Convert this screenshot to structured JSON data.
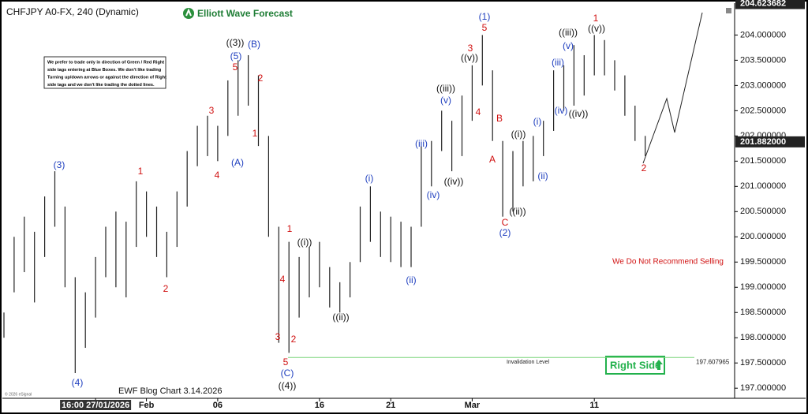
{
  "chart_data": {
    "type": "ohlc",
    "title": "CHFJPY A0-FX, 240 (Dynamic)",
    "brand": "Elliott Wave Forecast",
    "footer": "EWF Blog Chart 3.14.2026",
    "copyright": "© 2026 eSignal",
    "note": [
      "We prefer to trade only in direction of Green / Red Right",
      "side tags entering at Blue Boxes. We don't like trading",
      "Turning up/down arrows or against the direction of Right",
      "side tags and we don't like trading the dotted lines."
    ],
    "warning": "We Do Not Recommend Selling",
    "right_side": "Right Side",
    "invalidation": {
      "label": "Invalidation Level",
      "value": 197.607965,
      "color": "#7cd67c"
    },
    "last_high": 204.623682,
    "last_price": {
      "value": 201.882,
      "label": "201.882000"
    },
    "ylim": [
      196.8,
      204.6
    ],
    "yticks": [
      {
        "value": 197,
        "label": "197.000000"
      },
      {
        "value": 197.5,
        "label": "197.500000"
      },
      {
        "value": 198,
        "label": "198.000000"
      },
      {
        "value": 198.5,
        "label": "198.500000"
      },
      {
        "value": 199,
        "label": "199.000000"
      },
      {
        "value": 199.5,
        "label": "199.500000"
      },
      {
        "value": 200,
        "label": "200.000000"
      },
      {
        "value": 200.5,
        "label": "200.500000"
      },
      {
        "value": 201,
        "label": "201.000000"
      },
      {
        "value": 201.5,
        "label": "201.500000"
      },
      {
        "value": 202,
        "label": "202.000000"
      },
      {
        "value": 202.5,
        "label": "202.500000"
      },
      {
        "value": 203,
        "label": "203.000000"
      },
      {
        "value": 203.5,
        "label": "203.500000"
      },
      {
        "value": 204,
        "label": "204.000000"
      }
    ],
    "categories": [
      null,
      null,
      null,
      null,
      null,
      null,
      null,
      null,
      null,
      "16:00 27/01/2026",
      null,
      null,
      null,
      null,
      "Feb",
      null,
      null,
      null,
      null,
      null,
      null,
      "06",
      null,
      null,
      null,
      null,
      null,
      null,
      null,
      null,
      null,
      "16",
      null,
      null,
      null,
      null,
      null,
      null,
      "21",
      null,
      null,
      null,
      null,
      null,
      null,
      null,
      "Mar",
      null,
      null,
      null,
      null,
      null,
      null,
      null,
      null,
      null,
      null,
      null,
      "11",
      null,
      null,
      null,
      null,
      null
    ],
    "series": [
      {
        "color": "#222222",
        "low": [
          198.0,
          198.9,
          199.3,
          198.7,
          199.6,
          200.2,
          199.0,
          197.3,
          197.8,
          198.4,
          199.2,
          199.0,
          198.8,
          199.8,
          200.0,
          199.6,
          199.2,
          199.8,
          200.6,
          201.4,
          201.6,
          201.5,
          202.0,
          202.4,
          202.6,
          201.8,
          200.0,
          197.9,
          197.7,
          198.4,
          198.8,
          199.0,
          198.6,
          198.5,
          198.8,
          199.5,
          199.9,
          199.6,
          199.5,
          199.4,
          199.4,
          200.2,
          201.0,
          201.7,
          201.3,
          201.6,
          202.3,
          203.0,
          201.9,
          200.4,
          200.5,
          201.0,
          201.1,
          201.6,
          202.1,
          202.5,
          202.6,
          202.8,
          203.2,
          203.2,
          202.9,
          202.4,
          201.9,
          201.6
        ],
        "high": [
          198.5,
          200.0,
          200.4,
          200.1,
          200.8,
          201.3,
          200.6,
          199.2,
          198.9,
          199.6,
          200.2,
          200.5,
          200.3,
          201.1,
          200.9,
          200.6,
          200.1,
          200.9,
          201.7,
          202.2,
          202.4,
          202.2,
          203.1,
          203.5,
          203.6,
          203.2,
          202.0,
          200.2,
          199.9,
          199.6,
          199.8,
          199.9,
          199.4,
          199.1,
          199.5,
          200.6,
          201.0,
          200.5,
          200.4,
          200.3,
          200.2,
          201.8,
          201.9,
          202.5,
          202.3,
          202.8,
          203.4,
          204.0,
          203.3,
          201.9,
          201.7,
          201.9,
          202.0,
          202.3,
          203.3,
          203.4,
          203.8,
          203.6,
          204.0,
          203.9,
          203.5,
          203.2,
          202.6,
          202.0
        ]
      }
    ],
    "annotations": [
      {
        "text": "(3)",
        "color": "#1f3fbf"
      },
      {
        "text": "(4)",
        "color": "#1f3fbf"
      },
      {
        "text": "1",
        "color": "#d01010"
      },
      {
        "text": "2",
        "color": "#d01010"
      },
      {
        "text": "3",
        "color": "#d01010"
      },
      {
        "text": "4",
        "color": "#d01010"
      },
      {
        "text": "5",
        "color": "#d01010"
      },
      {
        "text": "(5)",
        "color": "#1f3fbf"
      },
      {
        "text": "((3))",
        "color": "#111111"
      },
      {
        "text": "(B)",
        "color": "#1f3fbf"
      },
      {
        "text": "2",
        "color": "#d01010"
      },
      {
        "text": "1",
        "color": "#d01010"
      },
      {
        "text": "(A)",
        "color": "#1f3fbf"
      },
      {
        "text": "1",
        "color": "#d01010"
      },
      {
        "text": "((i))",
        "color": "#111111"
      },
      {
        "text": "4",
        "color": "#d01010"
      },
      {
        "text": "3",
        "color": "#d01010"
      },
      {
        "text": "2",
        "color": "#d01010"
      },
      {
        "text": "5",
        "color": "#d01010"
      },
      {
        "text": "(C)",
        "color": "#1f3fbf"
      },
      {
        "text": "((4))",
        "color": "#111111"
      },
      {
        "text": "((ii))",
        "color": "#111111"
      },
      {
        "text": "(i)",
        "color": "#1f3fbf"
      },
      {
        "text": "(ii)",
        "color": "#1f3fbf"
      },
      {
        "text": "(iii)",
        "color": "#1f3fbf"
      },
      {
        "text": "(iv)",
        "color": "#1f3fbf"
      },
      {
        "text": "(v)",
        "color": "#1f3fbf"
      },
      {
        "text": "((iii))",
        "color": "#111111"
      },
      {
        "text": "((iv))",
        "color": "#111111"
      },
      {
        "text": "((v))",
        "color": "#111111"
      },
      {
        "text": "3",
        "color": "#d01010"
      },
      {
        "text": "5",
        "color": "#d01010"
      },
      {
        "text": "(1)",
        "color": "#1f3fbf"
      },
      {
        "text": "4",
        "color": "#d01010"
      },
      {
        "text": "B",
        "color": "#d01010"
      },
      {
        "text": "A",
        "color": "#d01010"
      },
      {
        "text": "C",
        "color": "#d01010"
      },
      {
        "text": "(2)",
        "color": "#1f3fbf"
      },
      {
        "text": "((i))",
        "color": "#111111"
      },
      {
        "text": "((ii))",
        "color": "#111111"
      },
      {
        "text": "(i)",
        "color": "#1f3fbf"
      },
      {
        "text": "(ii)",
        "color": "#1f3fbf"
      },
      {
        "text": "(iii)",
        "color": "#1f3fbf"
      },
      {
        "text": "(v)",
        "color": "#1f3fbf"
      },
      {
        "text": "((iii))",
        "color": "#111111"
      },
      {
        "text": "(iv)",
        "color": "#1f3fbf"
      },
      {
        "text": "((iv))",
        "color": "#111111"
      },
      {
        "text": "((v))",
        "color": "#111111"
      },
      {
        "text": "1",
        "color": "#d01010"
      },
      {
        "text": "2",
        "color": "#d01010"
      }
    ]
  }
}
